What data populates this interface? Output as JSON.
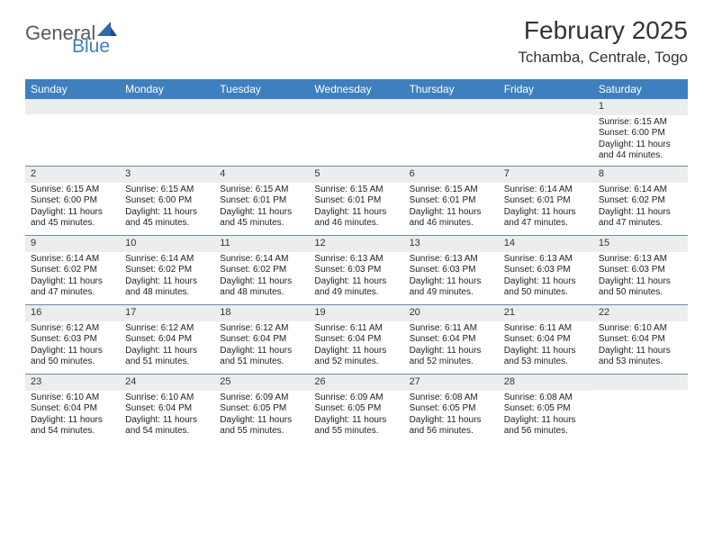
{
  "logo": {
    "text1": "General",
    "text2": "Blue"
  },
  "title": "February 2025",
  "location": "Tchamba, Centrale, Togo",
  "day_headers": [
    "Sunday",
    "Monday",
    "Tuesday",
    "Wednesday",
    "Thursday",
    "Friday",
    "Saturday"
  ],
  "colors": {
    "header_bg": "#3d7fbf",
    "header_text": "#ffffff",
    "daynum_bg": "#eceded",
    "row_border": "#6b8aa8"
  },
  "weeks": [
    [
      {
        "n": "",
        "sunrise": "",
        "sunset": "",
        "daylight": ""
      },
      {
        "n": "",
        "sunrise": "",
        "sunset": "",
        "daylight": ""
      },
      {
        "n": "",
        "sunrise": "",
        "sunset": "",
        "daylight": ""
      },
      {
        "n": "",
        "sunrise": "",
        "sunset": "",
        "daylight": ""
      },
      {
        "n": "",
        "sunrise": "",
        "sunset": "",
        "daylight": ""
      },
      {
        "n": "",
        "sunrise": "",
        "sunset": "",
        "daylight": ""
      },
      {
        "n": "1",
        "sunrise": "Sunrise: 6:15 AM",
        "sunset": "Sunset: 6:00 PM",
        "daylight": "Daylight: 11 hours and 44 minutes."
      }
    ],
    [
      {
        "n": "2",
        "sunrise": "Sunrise: 6:15 AM",
        "sunset": "Sunset: 6:00 PM",
        "daylight": "Daylight: 11 hours and 45 minutes."
      },
      {
        "n": "3",
        "sunrise": "Sunrise: 6:15 AM",
        "sunset": "Sunset: 6:00 PM",
        "daylight": "Daylight: 11 hours and 45 minutes."
      },
      {
        "n": "4",
        "sunrise": "Sunrise: 6:15 AM",
        "sunset": "Sunset: 6:01 PM",
        "daylight": "Daylight: 11 hours and 45 minutes."
      },
      {
        "n": "5",
        "sunrise": "Sunrise: 6:15 AM",
        "sunset": "Sunset: 6:01 PM",
        "daylight": "Daylight: 11 hours and 46 minutes."
      },
      {
        "n": "6",
        "sunrise": "Sunrise: 6:15 AM",
        "sunset": "Sunset: 6:01 PM",
        "daylight": "Daylight: 11 hours and 46 minutes."
      },
      {
        "n": "7",
        "sunrise": "Sunrise: 6:14 AM",
        "sunset": "Sunset: 6:01 PM",
        "daylight": "Daylight: 11 hours and 47 minutes."
      },
      {
        "n": "8",
        "sunrise": "Sunrise: 6:14 AM",
        "sunset": "Sunset: 6:02 PM",
        "daylight": "Daylight: 11 hours and 47 minutes."
      }
    ],
    [
      {
        "n": "9",
        "sunrise": "Sunrise: 6:14 AM",
        "sunset": "Sunset: 6:02 PM",
        "daylight": "Daylight: 11 hours and 47 minutes."
      },
      {
        "n": "10",
        "sunrise": "Sunrise: 6:14 AM",
        "sunset": "Sunset: 6:02 PM",
        "daylight": "Daylight: 11 hours and 48 minutes."
      },
      {
        "n": "11",
        "sunrise": "Sunrise: 6:14 AM",
        "sunset": "Sunset: 6:02 PM",
        "daylight": "Daylight: 11 hours and 48 minutes."
      },
      {
        "n": "12",
        "sunrise": "Sunrise: 6:13 AM",
        "sunset": "Sunset: 6:03 PM",
        "daylight": "Daylight: 11 hours and 49 minutes."
      },
      {
        "n": "13",
        "sunrise": "Sunrise: 6:13 AM",
        "sunset": "Sunset: 6:03 PM",
        "daylight": "Daylight: 11 hours and 49 minutes."
      },
      {
        "n": "14",
        "sunrise": "Sunrise: 6:13 AM",
        "sunset": "Sunset: 6:03 PM",
        "daylight": "Daylight: 11 hours and 50 minutes."
      },
      {
        "n": "15",
        "sunrise": "Sunrise: 6:13 AM",
        "sunset": "Sunset: 6:03 PM",
        "daylight": "Daylight: 11 hours and 50 minutes."
      }
    ],
    [
      {
        "n": "16",
        "sunrise": "Sunrise: 6:12 AM",
        "sunset": "Sunset: 6:03 PM",
        "daylight": "Daylight: 11 hours and 50 minutes."
      },
      {
        "n": "17",
        "sunrise": "Sunrise: 6:12 AM",
        "sunset": "Sunset: 6:04 PM",
        "daylight": "Daylight: 11 hours and 51 minutes."
      },
      {
        "n": "18",
        "sunrise": "Sunrise: 6:12 AM",
        "sunset": "Sunset: 6:04 PM",
        "daylight": "Daylight: 11 hours and 51 minutes."
      },
      {
        "n": "19",
        "sunrise": "Sunrise: 6:11 AM",
        "sunset": "Sunset: 6:04 PM",
        "daylight": "Daylight: 11 hours and 52 minutes."
      },
      {
        "n": "20",
        "sunrise": "Sunrise: 6:11 AM",
        "sunset": "Sunset: 6:04 PM",
        "daylight": "Daylight: 11 hours and 52 minutes."
      },
      {
        "n": "21",
        "sunrise": "Sunrise: 6:11 AM",
        "sunset": "Sunset: 6:04 PM",
        "daylight": "Daylight: 11 hours and 53 minutes."
      },
      {
        "n": "22",
        "sunrise": "Sunrise: 6:10 AM",
        "sunset": "Sunset: 6:04 PM",
        "daylight": "Daylight: 11 hours and 53 minutes."
      }
    ],
    [
      {
        "n": "23",
        "sunrise": "Sunrise: 6:10 AM",
        "sunset": "Sunset: 6:04 PM",
        "daylight": "Daylight: 11 hours and 54 minutes."
      },
      {
        "n": "24",
        "sunrise": "Sunrise: 6:10 AM",
        "sunset": "Sunset: 6:04 PM",
        "daylight": "Daylight: 11 hours and 54 minutes."
      },
      {
        "n": "25",
        "sunrise": "Sunrise: 6:09 AM",
        "sunset": "Sunset: 6:05 PM",
        "daylight": "Daylight: 11 hours and 55 minutes."
      },
      {
        "n": "26",
        "sunrise": "Sunrise: 6:09 AM",
        "sunset": "Sunset: 6:05 PM",
        "daylight": "Daylight: 11 hours and 55 minutes."
      },
      {
        "n": "27",
        "sunrise": "Sunrise: 6:08 AM",
        "sunset": "Sunset: 6:05 PM",
        "daylight": "Daylight: 11 hours and 56 minutes."
      },
      {
        "n": "28",
        "sunrise": "Sunrise: 6:08 AM",
        "sunset": "Sunset: 6:05 PM",
        "daylight": "Daylight: 11 hours and 56 minutes."
      },
      {
        "n": "",
        "sunrise": "",
        "sunset": "",
        "daylight": ""
      }
    ]
  ]
}
